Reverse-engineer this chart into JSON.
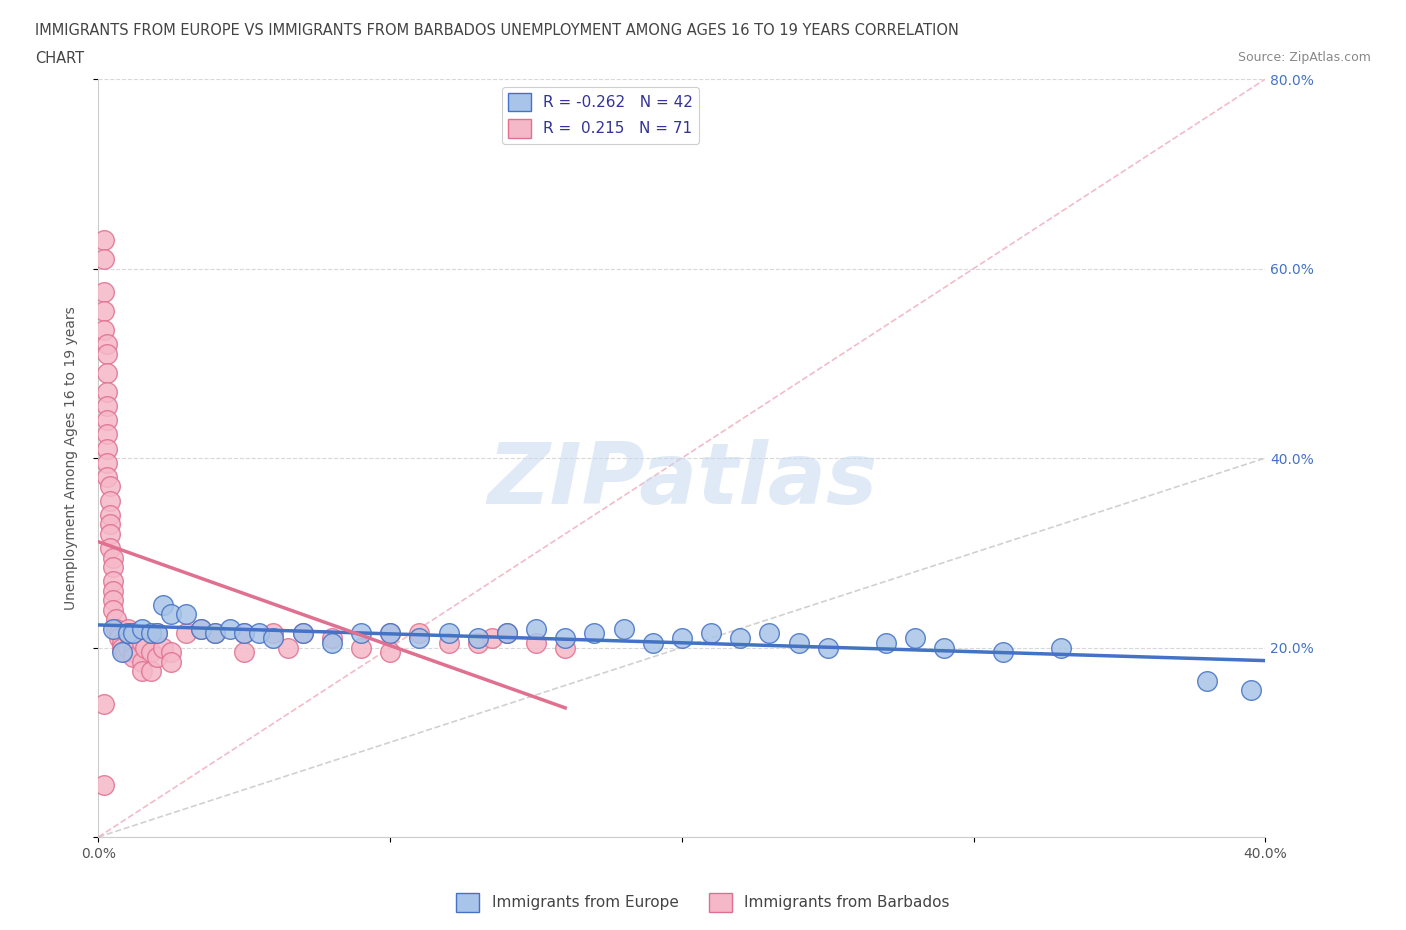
{
  "title_line1": "IMMIGRANTS FROM EUROPE VS IMMIGRANTS FROM BARBADOS UNEMPLOYMENT AMONG AGES 16 TO 19 YEARS CORRELATION",
  "title_line2": "CHART",
  "source": "Source: ZipAtlas.com",
  "ylabel": "Unemployment Among Ages 16 to 19 years",
  "xlim": [
    0.0,
    0.4
  ],
  "ylim": [
    0.0,
    0.8
  ],
  "ytick_positions": [
    0.0,
    0.2,
    0.4,
    0.6,
    0.8
  ],
  "xtick_positions": [
    0.0,
    0.1,
    0.2,
    0.3,
    0.4
  ],
  "legend_R_europe": "-0.262",
  "legend_N_europe": "42",
  "legend_R_barbados": "0.215",
  "legend_N_barbados": "71",
  "europe_face_color": "#a8c4e8",
  "barbados_face_color": "#f5b8c8",
  "europe_edge_color": "#4472c4",
  "barbados_edge_color": "#e07090",
  "europe_line_color": "#4472c4",
  "barbados_line_color": "#e07090",
  "diag_color": "#cccccc",
  "diag_pink_color": "#f0b0c0",
  "watermark_color": "#c8daf0",
  "europe_points_x": [
    0.005,
    0.008,
    0.01,
    0.012,
    0.015,
    0.018,
    0.02,
    0.022,
    0.025,
    0.03,
    0.035,
    0.04,
    0.045,
    0.05,
    0.055,
    0.06,
    0.07,
    0.08,
    0.09,
    0.1,
    0.11,
    0.12,
    0.13,
    0.14,
    0.15,
    0.16,
    0.17,
    0.18,
    0.19,
    0.2,
    0.21,
    0.22,
    0.23,
    0.24,
    0.25,
    0.27,
    0.28,
    0.29,
    0.31,
    0.33,
    0.38,
    0.395
  ],
  "europe_points_y": [
    0.22,
    0.195,
    0.215,
    0.215,
    0.22,
    0.215,
    0.215,
    0.245,
    0.235,
    0.235,
    0.22,
    0.215,
    0.22,
    0.215,
    0.215,
    0.21,
    0.215,
    0.205,
    0.215,
    0.215,
    0.21,
    0.215,
    0.21,
    0.215,
    0.22,
    0.21,
    0.215,
    0.22,
    0.205,
    0.21,
    0.215,
    0.21,
    0.215,
    0.205,
    0.2,
    0.205,
    0.21,
    0.2,
    0.195,
    0.2,
    0.165,
    0.155
  ],
  "barbados_points_x": [
    0.002,
    0.002,
    0.002,
    0.002,
    0.002,
    0.003,
    0.003,
    0.003,
    0.003,
    0.003,
    0.003,
    0.003,
    0.003,
    0.003,
    0.003,
    0.004,
    0.004,
    0.004,
    0.004,
    0.004,
    0.004,
    0.005,
    0.005,
    0.005,
    0.005,
    0.005,
    0.005,
    0.006,
    0.006,
    0.007,
    0.007,
    0.008,
    0.008,
    0.009,
    0.01,
    0.01,
    0.01,
    0.012,
    0.012,
    0.015,
    0.015,
    0.015,
    0.016,
    0.018,
    0.018,
    0.02,
    0.02,
    0.022,
    0.025,
    0.025,
    0.03,
    0.035,
    0.04,
    0.05,
    0.05,
    0.06,
    0.065,
    0.07,
    0.08,
    0.09,
    0.1,
    0.1,
    0.11,
    0.12,
    0.13,
    0.135,
    0.14,
    0.15,
    0.16,
    0.002,
    0.002
  ],
  "barbados_points_y": [
    0.63,
    0.61,
    0.575,
    0.555,
    0.535,
    0.52,
    0.51,
    0.49,
    0.47,
    0.455,
    0.44,
    0.425,
    0.41,
    0.395,
    0.38,
    0.37,
    0.355,
    0.34,
    0.33,
    0.32,
    0.305,
    0.295,
    0.285,
    0.27,
    0.26,
    0.25,
    0.24,
    0.23,
    0.22,
    0.215,
    0.21,
    0.205,
    0.2,
    0.195,
    0.22,
    0.215,
    0.2,
    0.195,
    0.19,
    0.205,
    0.185,
    0.175,
    0.2,
    0.195,
    0.175,
    0.215,
    0.19,
    0.2,
    0.195,
    0.185,
    0.215,
    0.22,
    0.215,
    0.215,
    0.195,
    0.215,
    0.2,
    0.215,
    0.21,
    0.2,
    0.215,
    0.195,
    0.215,
    0.205,
    0.205,
    0.21,
    0.215,
    0.205,
    0.2,
    0.14,
    0.055
  ]
}
